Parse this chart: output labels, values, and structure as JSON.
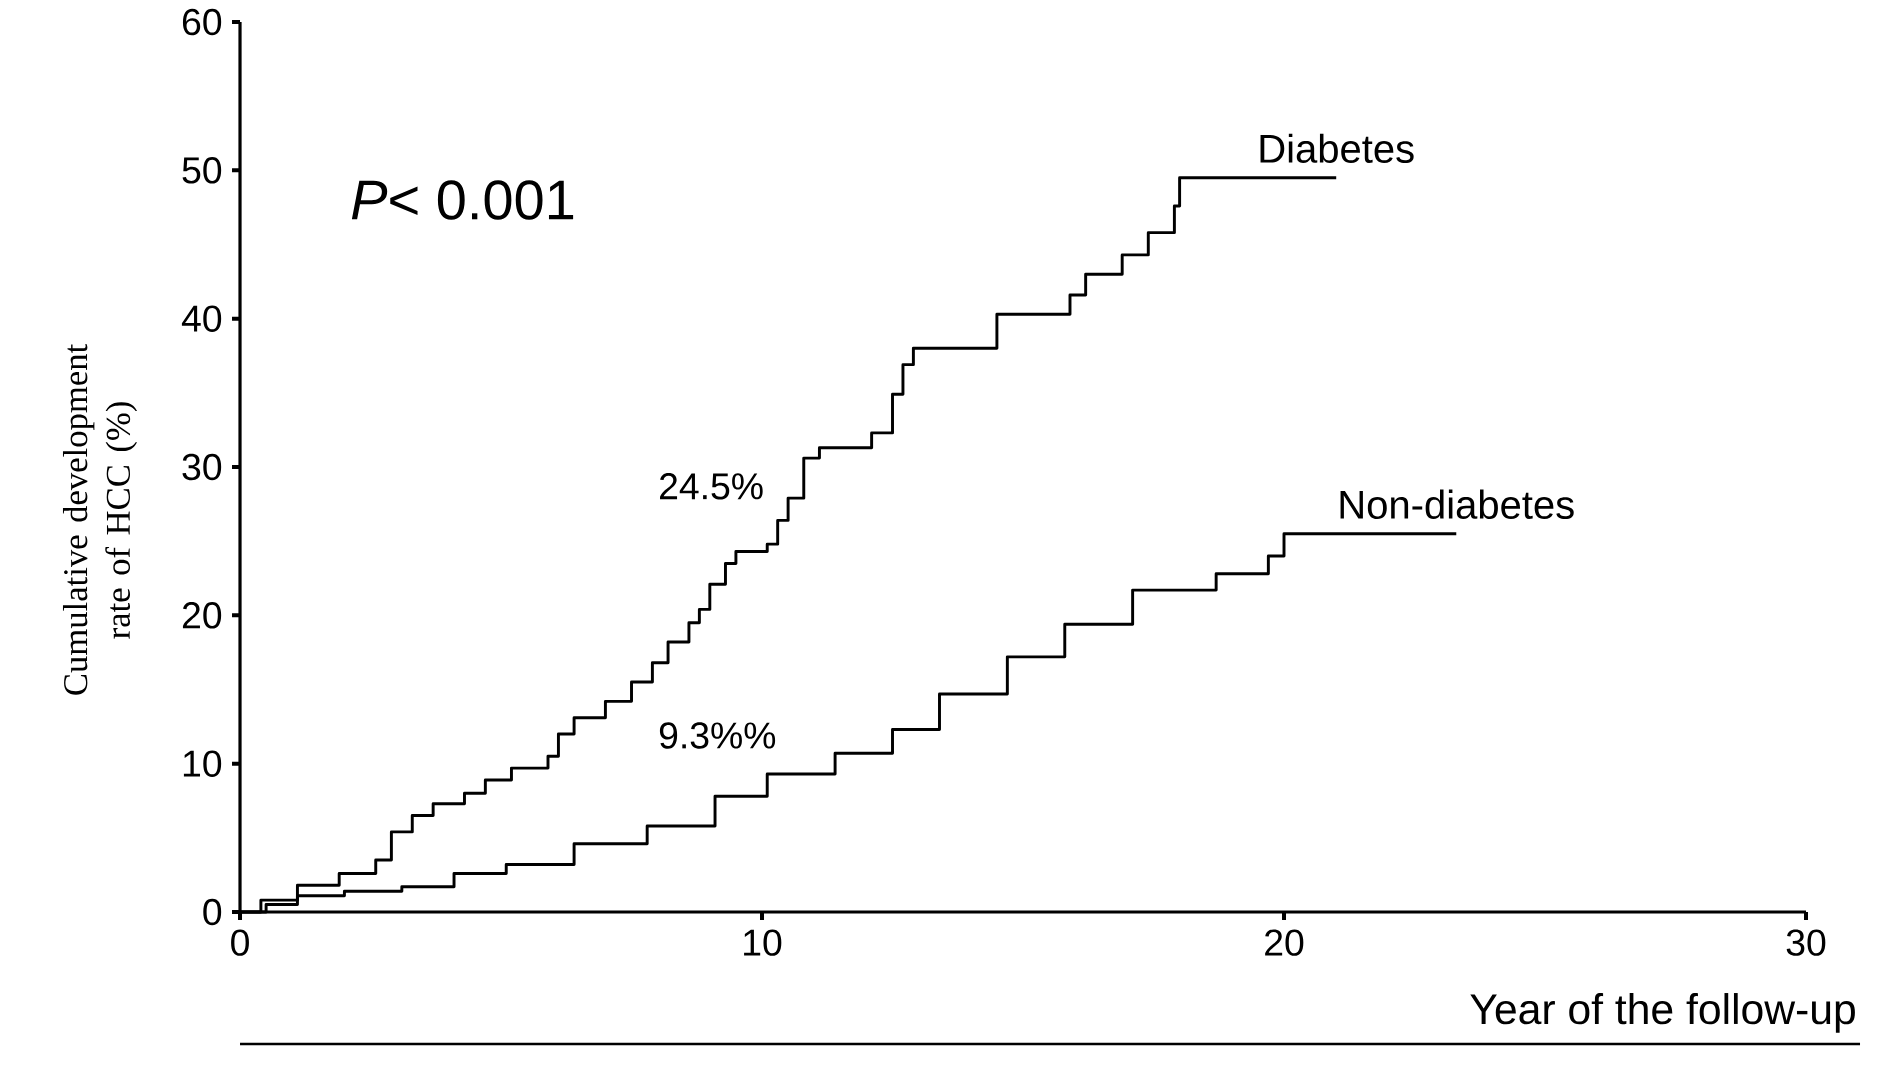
{
  "chart_data": {
    "type": "step",
    "xlabel": "Year of the follow-up",
    "ylabel": "Cumulative development rate of HCC (%)",
    "xlim": [
      0,
      30
    ],
    "ylim": [
      0,
      60
    ],
    "xticks": [
      0,
      10,
      20,
      30
    ],
    "yticks": [
      0,
      10,
      20,
      30,
      40,
      50,
      60
    ],
    "annotations": [
      "*P*< 0.001",
      "24.5%",
      "9.3%%"
    ],
    "series": [
      {
        "name": "Diabetes",
        "color": "#000000",
        "x": [
          0,
          0.4,
          1.1,
          1.9,
          2.6,
          2.9,
          3.3,
          3.7,
          4.3,
          4.7,
          5.2,
          5.9,
          6.1,
          6.4,
          7.0,
          7.5,
          7.9,
          8.2,
          8.6,
          8.8,
          9.0,
          9.3,
          9.5,
          10.1,
          10.3,
          10.5,
          10.8,
          11.1,
          12.1,
          12.5,
          12.7,
          12.9,
          14.5,
          15.9,
          16.2,
          16.9,
          17.4,
          17.9,
          18.0,
          21.0
        ],
        "values": [
          0,
          0.8,
          1.8,
          2.6,
          3.5,
          5.4,
          6.5,
          7.3,
          8.0,
          8.9,
          9.7,
          10.5,
          12.0,
          13.1,
          14.2,
          15.5,
          16.8,
          18.2,
          19.5,
          20.4,
          22.1,
          23.5,
          24.3,
          24.8,
          26.4,
          27.9,
          30.6,
          31.3,
          32.3,
          34.9,
          36.9,
          38.0,
          40.3,
          41.6,
          43.0,
          44.3,
          45.8,
          47.6,
          49.5,
          49.5
        ]
      },
      {
        "name": "Non-diabetes",
        "color": "#000000",
        "x": [
          0,
          0.5,
          1.1,
          2.0,
          3.1,
          4.1,
          5.1,
          6.4,
          7.8,
          9.1,
          10.1,
          11.4,
          12.5,
          13.4,
          14.7,
          15.8,
          17.1,
          18.1,
          18.7,
          19.5,
          19.7,
          20.0,
          23.3
        ],
        "values": [
          0,
          0.5,
          1.1,
          1.4,
          1.7,
          2.6,
          3.2,
          4.6,
          5.8,
          7.8,
          9.3,
          10.7,
          12.3,
          14.7,
          17.2,
          19.4,
          21.7,
          21.7,
          22.8,
          22.8,
          24.0,
          25.5,
          25.5
        ]
      }
    ]
  }
}
